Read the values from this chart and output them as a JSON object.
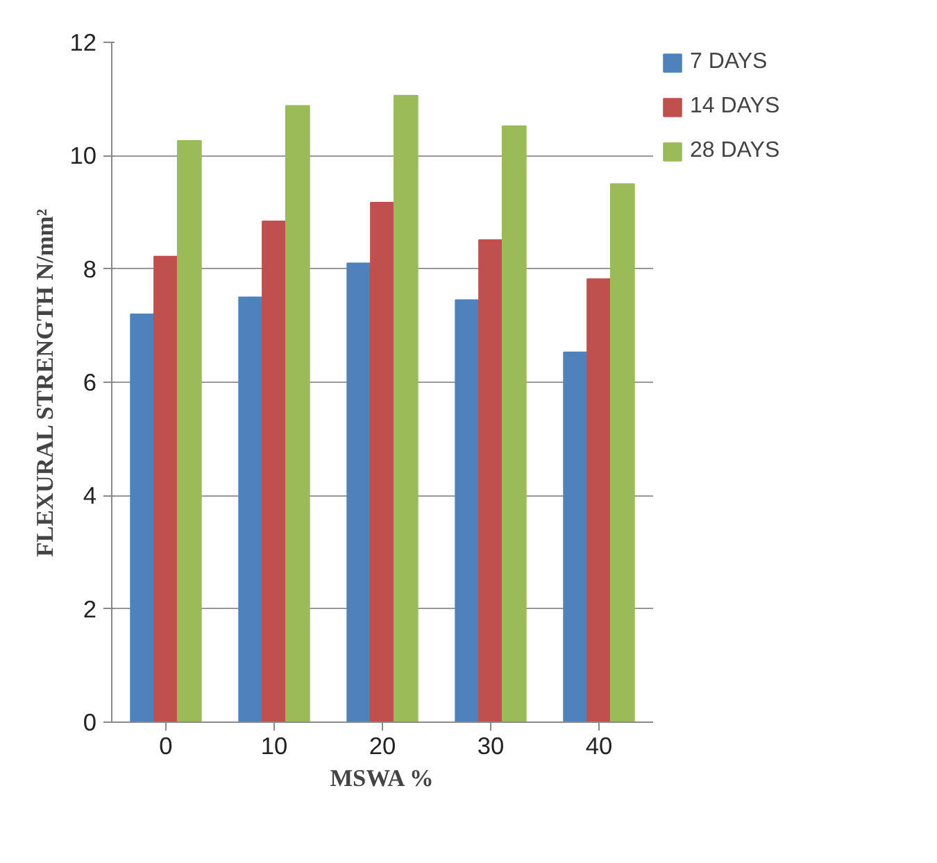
{
  "chart_data": {
    "type": "bar",
    "xlabel": "MSWA %",
    "ylabel": "FLEXURAL STRENGTH N/mm²",
    "categories": [
      "0",
      "10",
      "20",
      "30",
      "40"
    ],
    "series": [
      {
        "name": "7 DAYS",
        "color": "#4f81bd",
        "values": [
          7.2,
          7.5,
          8.1,
          7.45,
          6.53
        ]
      },
      {
        "name": "14 DAYS",
        "color": "#c0504d",
        "values": [
          8.22,
          8.84,
          9.17,
          8.51,
          7.82
        ]
      },
      {
        "name": "28 DAYS",
        "color": "#9bbb59",
        "values": [
          10.26,
          10.88,
          11.06,
          10.52,
          9.5
        ]
      }
    ],
    "ylim": [
      0,
      12
    ],
    "yticks": [
      0,
      2,
      4,
      6,
      8,
      10,
      12
    ],
    "grid": "y",
    "legend": "right"
  }
}
